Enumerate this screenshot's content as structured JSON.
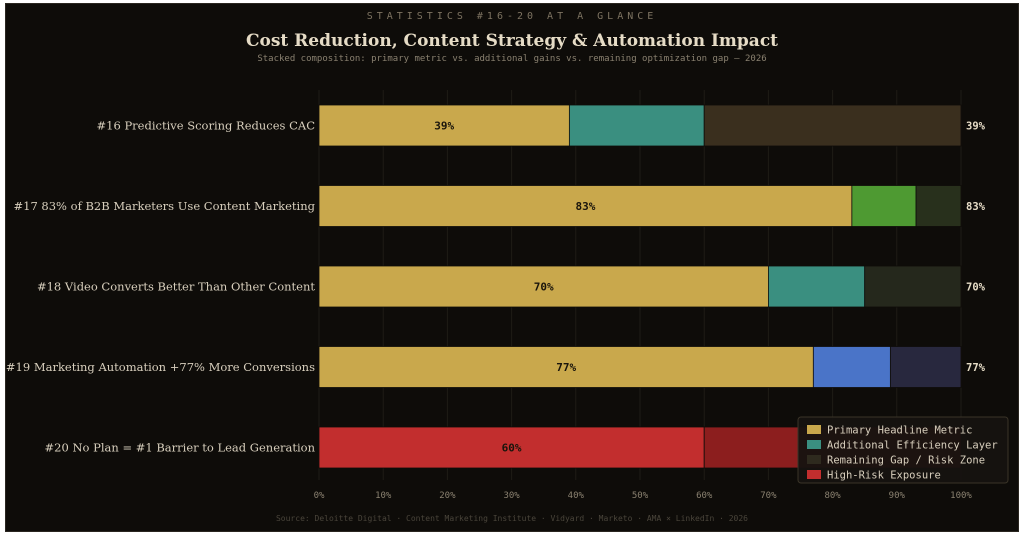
{
  "header": {
    "overline": "STATISTICS #16-20 AT A GLANCE",
    "title": "Cost Reduction, Content Strategy & Automation Impact",
    "subtitle": "Stacked composition: primary metric vs. additional gains vs. remaining optimization gap — 2026"
  },
  "footer": {
    "source": "Source: Deloitte Digital · Content Marketing Institute · Vidyard · Marketo · AMA × LinkedIn · 2026"
  },
  "chart_data": {
    "type": "bar",
    "orientation": "horizontal",
    "stacked": true,
    "categories": [
      "#16  Predictive Scoring Reduces CAC",
      "#17  83% of B2B Marketers Use Content Marketing",
      "#18  Video Converts Better Than Other Content",
      "#19  Marketing Automation +77% More Conversions",
      "#20  No Plan = #1 Barrier to Lead Generation"
    ],
    "segments": [
      [
        {
          "value": 39,
          "color": "#c9a84c",
          "label": "39%"
        },
        {
          "value": 21,
          "color": "#3a8f80"
        },
        {
          "value": 40,
          "color": "#3a2f1e"
        }
      ],
      [
        {
          "value": 83,
          "color": "#c9a84c",
          "label": "83%"
        },
        {
          "value": 10,
          "color": "#4e9a32"
        },
        {
          "value": 7,
          "color": "#28301c"
        }
      ],
      [
        {
          "value": 70,
          "color": "#c9a84c",
          "label": "70%"
        },
        {
          "value": 15,
          "color": "#3a8f80"
        },
        {
          "value": 15,
          "color": "#25281c"
        }
      ],
      [
        {
          "value": 77,
          "color": "#c9a84c",
          "label": "77%"
        },
        {
          "value": 12,
          "color": "#4a74c8"
        },
        {
          "value": 11,
          "color": "#28283e"
        }
      ],
      [
        {
          "value": 60,
          "color": "#c22e2e",
          "label": "60%"
        },
        {
          "value": 40,
          "color": "#8c1e1e"
        }
      ]
    ],
    "end_labels": [
      "39%",
      "83%",
      "70%",
      "77%",
      ""
    ],
    "xlim": [
      0,
      100
    ],
    "xticks": [
      "0%",
      "10%",
      "20%",
      "30%",
      "40%",
      "50%",
      "60%",
      "70%",
      "80%",
      "90%",
      "100%"
    ],
    "grid": true,
    "legend_position": "bottom-right",
    "legend": [
      {
        "name": "Primary Headline Metric",
        "color": "#c9a84c"
      },
      {
        "name": "Additional Efficiency Layer",
        "color": "#3a8f80"
      },
      {
        "name": "Remaining Gap / Risk Zone",
        "color": "#2e2a1e"
      },
      {
        "name": "High-Risk Exposure",
        "color": "#c22e2e"
      }
    ]
  }
}
